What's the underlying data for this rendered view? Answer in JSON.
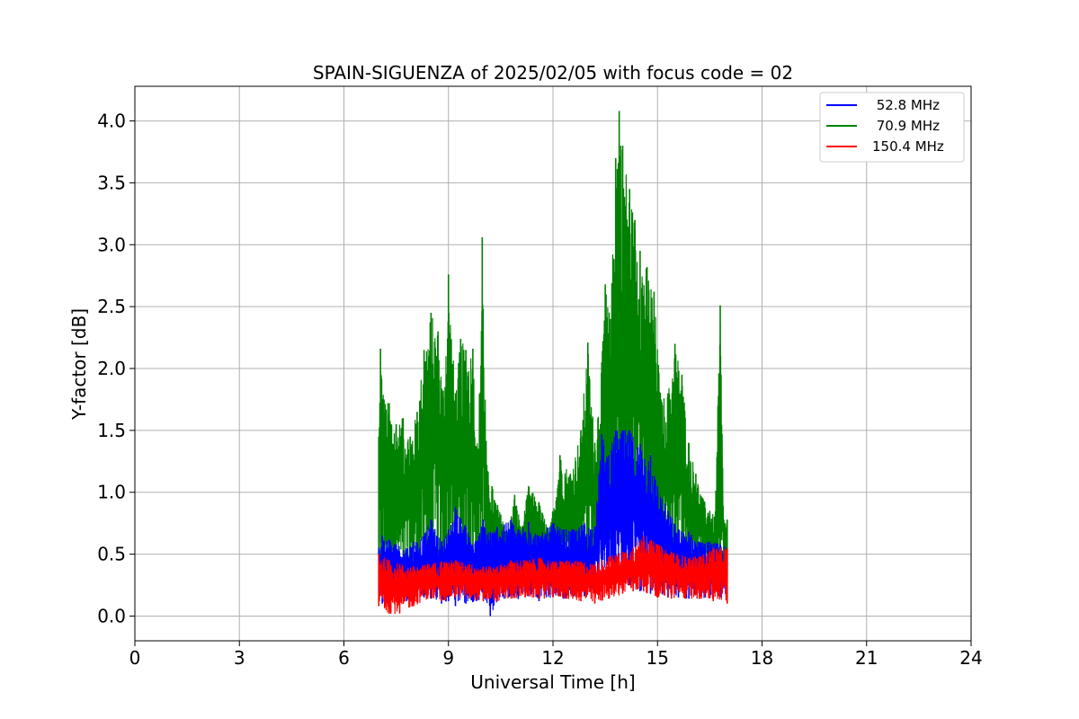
{
  "chart_data": {
    "type": "line",
    "title": "SPAIN-SIGUENZA of 2025/02/05 with focus code = 02",
    "xlabel": "Universal Time [h]",
    "ylabel": "Y-factor [dB]",
    "xlim": [
      0,
      24
    ],
    "ylim": [
      -0.2,
      4.28
    ],
    "xticks": [
      0,
      3,
      6,
      9,
      12,
      15,
      18,
      21,
      24
    ],
    "xtick_labels": [
      "0",
      "3",
      "6",
      "9",
      "12",
      "15",
      "18",
      "21",
      "24"
    ],
    "yticks": [
      0.0,
      0.5,
      1.0,
      1.5,
      2.0,
      2.5,
      3.0,
      3.5,
      4.0
    ],
    "ytick_labels": [
      "0.0",
      "0.5",
      "1.0",
      "1.5",
      "2.0",
      "2.5",
      "3.0",
      "3.5",
      "4.0"
    ],
    "grid": true,
    "legend_position": "top-right",
    "series": [
      {
        "name": " 52.8 MHz",
        "color": "#0000ff",
        "x": [
          7.0,
          7.1,
          7.3,
          7.5,
          7.8,
          8.0,
          8.3,
          8.5,
          8.8,
          9.0,
          9.2,
          9.5,
          9.8,
          10.0,
          10.2,
          10.4,
          10.6,
          10.8,
          11.0,
          11.3,
          11.6,
          12.0,
          12.3,
          12.6,
          12.9,
          13.2,
          13.4,
          13.6,
          13.8,
          14.0,
          14.2,
          14.5,
          14.8,
          15.0,
          15.3,
          15.6,
          15.9,
          16.2,
          16.5,
          16.8,
          17.0
        ],
        "high": [
          0.55,
          0.65,
          0.62,
          0.58,
          0.55,
          0.6,
          0.65,
          0.78,
          0.6,
          0.7,
          0.88,
          0.72,
          0.6,
          0.78,
          0.68,
          0.72,
          0.74,
          0.78,
          0.7,
          0.76,
          0.65,
          0.75,
          0.7,
          0.7,
          0.75,
          0.72,
          1.47,
          1.3,
          1.5,
          1.5,
          1.5,
          1.39,
          1.3,
          1.05,
          0.85,
          0.7,
          0.68,
          0.6,
          0.6,
          0.58,
          0.55
        ],
        "low": [
          0.12,
          0.1,
          0.1,
          0.12,
          0.12,
          0.14,
          0.15,
          0.14,
          0.1,
          0.12,
          0.08,
          0.1,
          0.12,
          0.14,
          0.0,
          0.12,
          0.14,
          0.15,
          0.14,
          0.16,
          0.12,
          0.16,
          0.14,
          0.16,
          0.16,
          0.2,
          0.25,
          0.3,
          0.3,
          0.3,
          0.25,
          0.2,
          0.18,
          0.16,
          0.15,
          0.15,
          0.14,
          0.14,
          0.15,
          0.15,
          0.14
        ]
      },
      {
        "name": " 70.9 MHz",
        "color": "#008000",
        "x": [
          7.0,
          7.05,
          7.15,
          7.3,
          7.5,
          7.7,
          7.9,
          8.1,
          8.3,
          8.5,
          8.7,
          8.85,
          9.0,
          9.2,
          9.35,
          9.5,
          9.7,
          9.85,
          9.97,
          10.1,
          10.25,
          10.5,
          10.7,
          10.9,
          11.1,
          11.3,
          11.6,
          11.9,
          12.2,
          12.5,
          12.8,
          13.0,
          13.2,
          13.4,
          13.5,
          13.65,
          13.8,
          13.9,
          14.0,
          14.2,
          14.35,
          14.5,
          14.7,
          14.9,
          15.1,
          15.3,
          15.5,
          15.7,
          15.9,
          16.1,
          16.3,
          16.5,
          16.65,
          16.8,
          16.9,
          17.0
        ],
        "high": [
          1.45,
          2.16,
          1.75,
          1.72,
          1.55,
          1.6,
          1.45,
          1.65,
          2.15,
          2.45,
          2.3,
          1.82,
          2.76,
          1.8,
          2.24,
          2.15,
          2.16,
          1.3,
          3.06,
          1.22,
          1.05,
          0.82,
          0.68,
          0.98,
          0.72,
          1.05,
          0.92,
          0.68,
          1.3,
          1.15,
          1.5,
          2.21,
          1.4,
          2.05,
          2.68,
          2.4,
          3.7,
          4.08,
          3.8,
          3.45,
          3.2,
          2.95,
          2.82,
          2.62,
          1.75,
          1.8,
          2.2,
          1.95,
          1.4,
          1.15,
          0.95,
          0.85,
          0.8,
          2.51,
          0.78,
          0.78
        ],
        "low": [
          0.45,
          0.35,
          0.32,
          0.28,
          0.3,
          0.32,
          0.35,
          0.38,
          0.4,
          0.38,
          0.36,
          0.35,
          0.36,
          0.34,
          0.36,
          0.36,
          0.35,
          0.36,
          0.36,
          0.32,
          0.32,
          0.34,
          0.34,
          0.35,
          0.36,
          0.38,
          0.38,
          0.38,
          0.38,
          0.4,
          0.42,
          0.45,
          0.5,
          0.55,
          0.6,
          0.62,
          0.65,
          0.66,
          0.65,
          0.66,
          0.65,
          0.66,
          0.65,
          0.62,
          0.58,
          0.55,
          0.5,
          0.48,
          0.45,
          0.42,
          0.4,
          0.38,
          0.36,
          0.34,
          0.34,
          0.34
        ]
      },
      {
        "name": "150.4 MHz",
        "color": "#ff0000",
        "x": [
          7.0,
          7.3,
          7.6,
          8.0,
          8.4,
          8.8,
          9.2,
          9.6,
          10.0,
          10.4,
          10.8,
          11.2,
          11.6,
          12.0,
          12.4,
          12.8,
          13.2,
          13.6,
          14.0,
          14.3,
          14.6,
          15.0,
          15.4,
          15.8,
          16.2,
          16.6,
          17.0
        ],
        "high": [
          0.5,
          0.45,
          0.42,
          0.4,
          0.42,
          0.44,
          0.45,
          0.42,
          0.4,
          0.4,
          0.45,
          0.45,
          0.47,
          0.44,
          0.45,
          0.44,
          0.42,
          0.48,
          0.52,
          0.55,
          0.65,
          0.58,
          0.52,
          0.48,
          0.48,
          0.55,
          0.55
        ],
        "low": [
          0.08,
          0.02,
          0.02,
          0.08,
          0.14,
          0.12,
          0.15,
          0.14,
          0.12,
          0.12,
          0.14,
          0.15,
          0.14,
          0.15,
          0.14,
          0.12,
          0.1,
          0.14,
          0.18,
          0.2,
          0.2,
          0.15,
          0.14,
          0.14,
          0.14,
          0.12,
          0.1
        ]
      }
    ]
  }
}
